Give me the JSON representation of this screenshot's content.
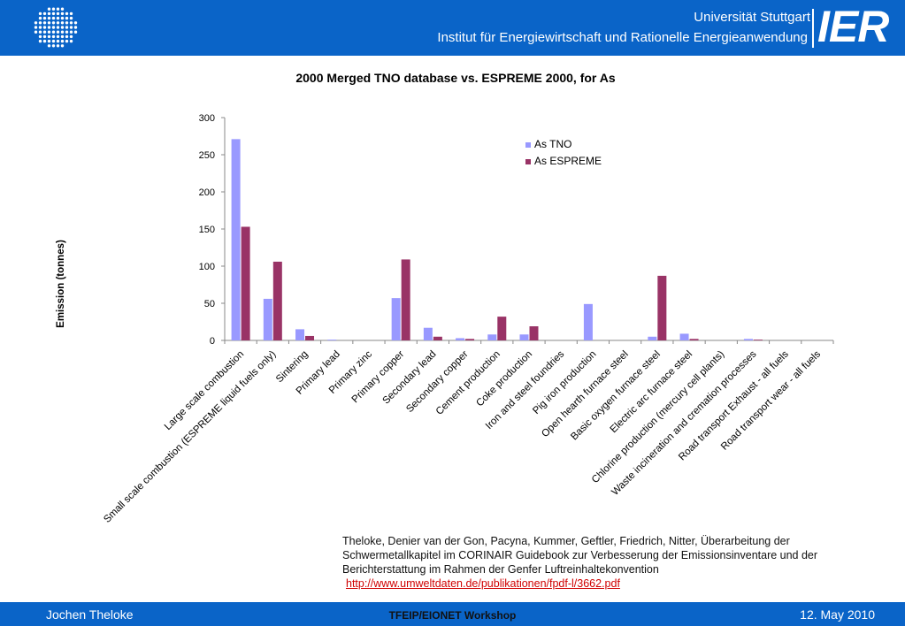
{
  "header": {
    "university": "Universität Stuttgart",
    "institute": "Institut für Energiewirtschaft und Rationelle Energieanwendung",
    "logo_text": "IER"
  },
  "chart_data": {
    "type": "bar",
    "title": "2000 Merged TNO database vs. ESPREME 2000, for As",
    "xlabel": "",
    "ylabel": "Emission (tonnes)",
    "ylim": [
      0,
      300
    ],
    "yticks": [
      0,
      50,
      100,
      150,
      200,
      250,
      300
    ],
    "legend_position": "top-right",
    "categories": [
      "Large scale combustion",
      "Small scale combustion (ESPREME liquid fuels only)",
      "Sintering",
      "Primary lead",
      "Primary zinc",
      "Primary copper",
      "Secondary lead",
      "Secondary copper",
      "Cement production",
      "Coke production",
      "Iron and steel foundries",
      "Pig iron production",
      "Open hearth furnace steel",
      "Basic oxygen furnace steel",
      "Electric arc furnace steel",
      "Chlorine production (mercury cell plants)",
      "Waste incineration and cremation processes",
      "Road transport Exhaust - all fuels",
      "Road transport wear - all fuels"
    ],
    "series": [
      {
        "name": "As TNO",
        "color": "#9999ff",
        "values": [
          271,
          56,
          15,
          1,
          0,
          57,
          17,
          3,
          8,
          8,
          0,
          49,
          0,
          5,
          9,
          0,
          2,
          0,
          0
        ]
      },
      {
        "name": "As ESPREME",
        "color": "#993366",
        "values": [
          153,
          106,
          6,
          0,
          0,
          109,
          5,
          2,
          32,
          19,
          0,
          0,
          0,
          87,
          2,
          0,
          1,
          0,
          0
        ]
      }
    ]
  },
  "citation": {
    "text": "Theloke, Denier van der Gon, Pacyna, Kummer, Geftler, Friedrich, Nitter, Überarbeitung der Schwermetallkapitel im CORINAIR Guidebook zur Verbesserung der Emissionsinventare und der Berichterstattung im Rahmen der Genfer Luftreinhaltekonvention",
    "link": "http://www.umweltdaten.de/publikationen/fpdf-l/3662.pdf"
  },
  "footer": {
    "author": "Jochen Theloke",
    "event": "TFEIP/EIONET Workshop",
    "date": "12. May 2010"
  }
}
